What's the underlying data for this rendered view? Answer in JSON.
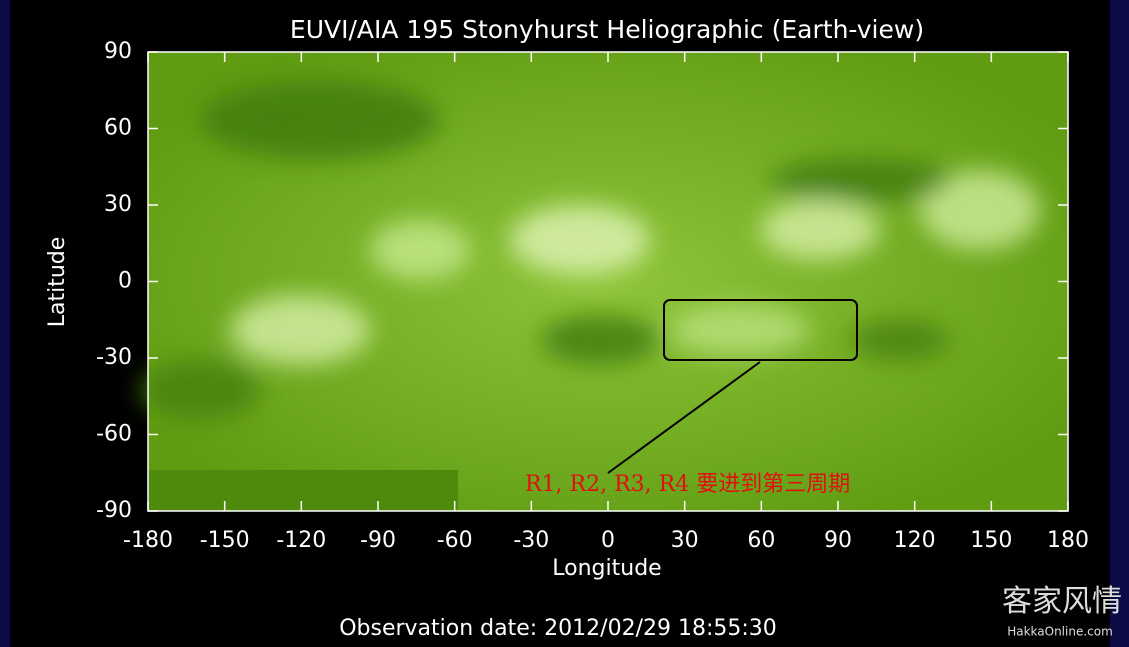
{
  "chart_data": {
    "type": "image",
    "title": "EUVI/AIA 195 Stonyhurst Heliographic (Earth-view)",
    "x_label": "Longitude",
    "y_label": "Latitude",
    "xlim": [
      -180,
      180
    ],
    "ylim": [
      -90,
      90
    ],
    "xticks": [
      -180,
      -150,
      -120,
      -90,
      -60,
      -30,
      0,
      30,
      60,
      90,
      120,
      150,
      180
    ],
    "yticks": [
      -90,
      -60,
      -30,
      0,
      30,
      60,
      90
    ],
    "annotation": "R1, R2, R3, R4 要进到第三周期",
    "footer": "Observation date: 2012/02/29 18:55:30"
  },
  "watermark": {
    "title": "客家风情",
    "site": "HakkaOnline.com"
  }
}
